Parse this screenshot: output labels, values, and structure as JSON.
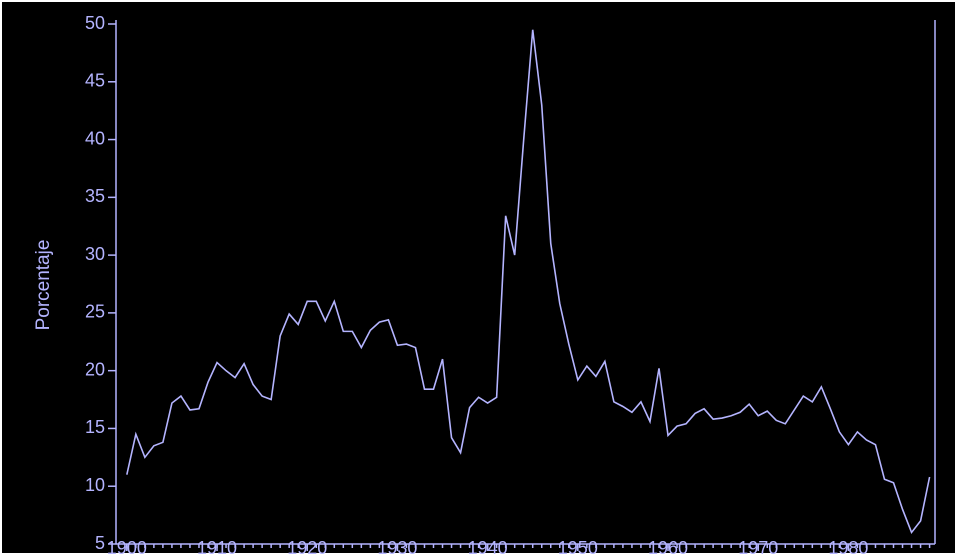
{
  "chart_data": {
    "type": "line",
    "y_label": "Porcentaje",
    "x": [
      1900,
      1901,
      1902,
      1903,
      1904,
      1905,
      1906,
      1907,
      1908,
      1909,
      1910,
      1911,
      1912,
      1913,
      1914,
      1915,
      1916,
      1917,
      1918,
      1919,
      1920,
      1921,
      1922,
      1923,
      1924,
      1925,
      1926,
      1927,
      1928,
      1929,
      1930,
      1931,
      1932,
      1933,
      1934,
      1935,
      1936,
      1937,
      1938,
      1939,
      1940,
      1941,
      1942,
      1943,
      1944,
      1945,
      1946,
      1947,
      1948,
      1949,
      1950,
      1951,
      1952,
      1953,
      1954,
      1955,
      1956,
      1957,
      1958,
      1959,
      1960,
      1961,
      1962,
      1963,
      1964,
      1965,
      1966,
      1967,
      1968,
      1969,
      1970,
      1971,
      1972,
      1973,
      1974,
      1975,
      1976,
      1977,
      1978,
      1979,
      1980,
      1981,
      1982,
      1983,
      1984,
      1985,
      1986,
      1987,
      1988,
      1989
    ],
    "values": [
      11,
      14.5,
      12.5,
      13.5,
      13.8,
      17.2,
      17.8,
      16.6,
      16.7,
      19,
      20.7,
      20,
      19.4,
      20.6,
      18.8,
      17.8,
      17.5,
      23,
      24.9,
      24,
      26,
      26,
      24.3,
      26,
      23.4,
      23.4,
      22,
      23.5,
      24.2,
      24.4,
      22.2,
      22.3,
      22,
      18.4,
      18.4,
      21,
      14.2,
      12.9,
      16.8,
      17.7,
      17.2,
      17.7,
      33.4,
      30,
      40,
      49.5,
      43,
      31,
      25.8,
      22.3,
      19.2,
      20.4,
      19.5,
      20.8,
      17.3,
      16.9,
      16.4,
      17.3,
      15.6,
      20.2,
      14.4,
      15.2,
      15.4,
      16.3,
      16.7,
      15.8,
      15.9,
      16.1,
      16.4,
      17.1,
      16.1,
      16.5,
      15.7,
      15.4,
      16.6,
      17.8,
      17.3,
      18.6,
      16.7,
      14.7,
      13.6,
      14.7,
      14,
      13.6,
      10.6,
      10.3,
      8,
      6,
      7,
      10.8
    ],
    "color": "#b4b4ff",
    "xlim": [
      1898.8,
      1989.6
    ],
    "xticks": [
      1900,
      1910,
      1920,
      1930,
      1940,
      1950,
      1960,
      1970,
      1980
    ],
    "ylim": [
      5,
      50
    ],
    "yticks": [
      5,
      10,
      15,
      20,
      25,
      30,
      35,
      40,
      45,
      50
    ],
    "minor_x_ticks": true,
    "grid": false
  }
}
